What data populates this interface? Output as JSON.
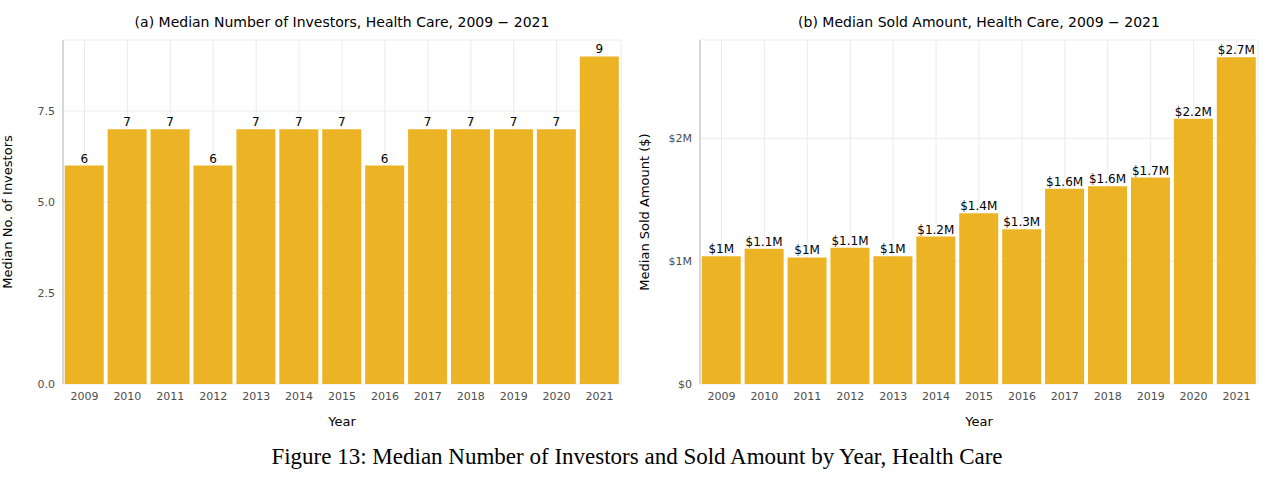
{
  "caption": "Figure 13: Median Number of Investors and Sold Amount by Year, Health Care",
  "chart_data": [
    {
      "type": "bar",
      "title": "(a) Median Number of Investors, Health Care, 2009 − 2021",
      "x_label": "Year",
      "y_label": "Median No. of Investors",
      "categories": [
        "2009",
        "2010",
        "2011",
        "2012",
        "2013",
        "2014",
        "2015",
        "2016",
        "2017",
        "2018",
        "2019",
        "2020",
        "2021"
      ],
      "values": [
        6,
        7,
        7,
        6,
        7,
        7,
        7,
        6,
        7,
        7,
        7,
        7,
        9
      ],
      "color": "#ecb424",
      "ylim": [
        0,
        9.45
      ],
      "yticks": [
        {
          "value": 0,
          "label": "0.0"
        },
        2.5,
        {
          "value": 5,
          "label": "5.0"
        },
        7.5
      ],
      "grid": true,
      "data_labels": true
    },
    {
      "type": "bar",
      "title": "(b) Median Sold Amount, Health Care, 2009 − 2021",
      "x_label": "Year",
      "y_label": "Median Sold Amount ($)",
      "categories": [
        "2009",
        "2010",
        "2011",
        "2012",
        "2013",
        "2014",
        "2015",
        "2016",
        "2017",
        "2018",
        "2019",
        "2020",
        "2021"
      ],
      "values": [
        1040000,
        1100000,
        1030000,
        1110000,
        1040000,
        1200000,
        1390000,
        1260000,
        1590000,
        1610000,
        1680000,
        2160000,
        2660000
      ],
      "value_labels": [
        "$1M",
        "$1.1M",
        "$1M",
        "$1.1M",
        "$1M",
        "$1.2M",
        "$1.4M",
        "$1.3M",
        "$1.6M",
        "$1.6M",
        "$1.7M",
        "$2.2M",
        "$2.7M"
      ],
      "color": "#ecb424",
      "ylim": [
        0,
        2800000
      ],
      "yticks": [
        {
          "value": 0,
          "label": "$0"
        },
        {
          "value": 1000000,
          "label": "$1M"
        },
        {
          "value": 2000000,
          "label": "$2M"
        }
      ],
      "grid": true,
      "data_labels": true
    }
  ]
}
